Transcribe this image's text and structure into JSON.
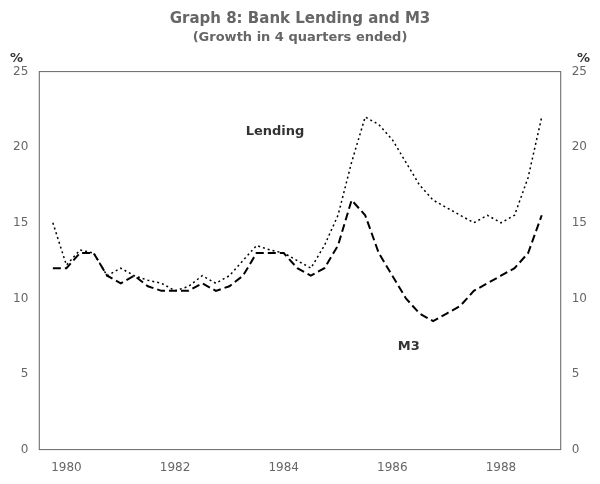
{
  "chart_data": {
    "type": "line",
    "title": "Graph 8: Bank Lending and M3",
    "subtitle": "(Growth in 4 quarters ended)",
    "ylabel": "%",
    "y2label": "%",
    "x": [
      1979.75,
      1980.0,
      1980.25,
      1980.5,
      1980.75,
      1981.0,
      1981.25,
      1981.5,
      1981.75,
      1982.0,
      1982.25,
      1982.5,
      1982.75,
      1983.0,
      1983.25,
      1983.5,
      1983.75,
      1984.0,
      1984.25,
      1984.5,
      1984.75,
      1985.0,
      1985.25,
      1985.5,
      1985.75,
      1986.0,
      1986.25,
      1986.5,
      1986.75,
      1987.0,
      1987.25,
      1987.5,
      1987.75,
      1988.0,
      1988.25,
      1988.5,
      1988.75
    ],
    "series": [
      {
        "name": "Lending",
        "color": "#000000",
        "line_style": "dotted",
        "values": [
          15.0,
          12.2,
          13.2,
          13.0,
          11.5,
          12.0,
          11.5,
          11.2,
          11.0,
          10.5,
          10.8,
          11.5,
          11.0,
          11.5,
          12.5,
          13.5,
          13.2,
          13.0,
          12.5,
          12.0,
          13.5,
          15.5,
          19.0,
          22.0,
          21.5,
          20.5,
          19.0,
          17.5,
          16.5,
          16.0,
          15.5,
          15.0,
          15.5,
          15.0,
          15.5,
          18.0,
          22.0
        ]
      },
      {
        "name": "M3",
        "color": "#000000",
        "line_style": "dashed",
        "values": [
          12.0,
          12.0,
          13.0,
          13.0,
          11.5,
          11.0,
          11.5,
          10.8,
          10.5,
          10.5,
          10.5,
          11.0,
          10.5,
          10.8,
          11.5,
          13.0,
          13.0,
          13.0,
          12.0,
          11.5,
          12.0,
          13.5,
          16.5,
          15.5,
          13.0,
          11.5,
          10.0,
          9.0,
          8.5,
          9.0,
          9.5,
          10.5,
          11.0,
          11.5,
          12.0,
          13.0,
          15.5
        ]
      }
    ],
    "annotations": [
      {
        "text": "Lending",
        "x": 1983.3,
        "y": 21.0
      },
      {
        "text": "M3",
        "x": 1986.1,
        "y": 6.8
      }
    ],
    "xlim": [
      1979.5,
      1989.1
    ],
    "xticks": [
      1980,
      1982,
      1984,
      1986,
      1988
    ],
    "ylim": [
      0,
      25
    ],
    "yticks": [
      0,
      5,
      10,
      15,
      20,
      25
    ],
    "y2lim": [
      0,
      25
    ],
    "y2ticks": [
      0,
      5,
      10,
      15,
      20,
      25
    ],
    "grid": false,
    "legend": false
  }
}
